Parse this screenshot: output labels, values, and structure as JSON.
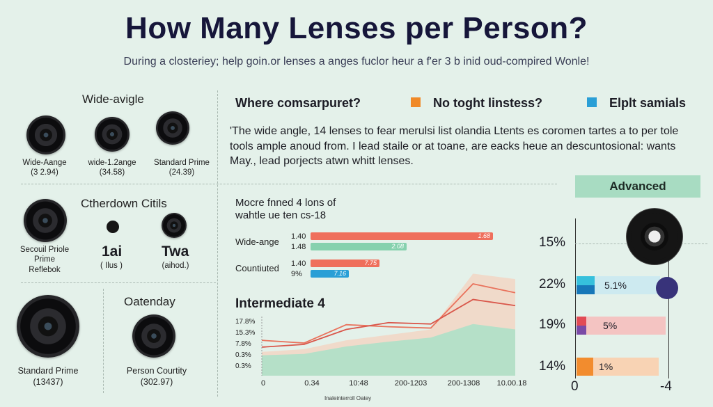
{
  "title": "How Many Lenses per Person?",
  "subtitle": "During a closteriey; help goin.or lenses a anges fuclor heur a f'er 3 b inid oud-compired Wonle!",
  "left": {
    "section1_title": "Wide-avigle",
    "lenses1": [
      {
        "label": "Wide-Aange",
        "sub": "(3 2.94)"
      },
      {
        "label": "wide-1.2ange",
        "sub": "(34.58)"
      },
      {
        "label": "Standard Prime",
        "sub": "(24.39)"
      }
    ],
    "section2_title": "Ctherdown Citils",
    "lenses2": [
      {
        "label": "Secouil Priole\nPrime\nReflebok",
        "sub": ""
      },
      {
        "label": "1ai",
        "sub": "( Ilus )"
      },
      {
        "label": "Twa",
        "sub": "(aihod.)"
      }
    ],
    "lens3": {
      "label": "Standard Prime",
      "sub": "(13437)"
    },
    "section3_title": "Oatenday",
    "lens4": {
      "label": "Person Courtity",
      "sub": "(302.97)"
    }
  },
  "middle": {
    "question": "Where comsarpuret?",
    "body": "'The wide angle, 14 lenses to fear merulsi list olandia Ltents es coromen tartes a to per tole tools ample anoud from. I lead staile or at toane, are eacks heue an descuntosional: wants May., lead porjects atwn whitt lenses.",
    "bar_title_line1": "Mocre fnned 4 lons of",
    "bar_title_line2": "wahtle ue ten cs-18",
    "intermediate_title": "Intermediate 4",
    "footer_label": "Inaleinterroll Oatey"
  },
  "legend": [
    {
      "label": "No toght linstess?",
      "color": "#f08a28"
    },
    {
      "label": "Elplt samials",
      "color": "#2a9fd6"
    }
  ],
  "bar_chart": {
    "rows": [
      {
        "label": "Wide-ange",
        "bars": [
          {
            "pct": "1.40",
            "val": "1.68",
            "color": "#ef6f5c",
            "frac": 0.95
          },
          {
            "pct": "1.48",
            "val": "2.08",
            "color": "#86d1ae",
            "frac": 0.5
          }
        ]
      },
      {
        "label": "Countiuted",
        "bars": [
          {
            "pct": "1.40",
            "val": "7.75",
            "color": "#ef6f5c",
            "frac": 0.36
          },
          {
            "pct": "9%",
            "val": "7.16",
            "color": "#2a9fd6",
            "frac": 0.2
          }
        ]
      }
    ]
  },
  "advanced": {
    "label": "Advanced",
    "rows": [
      {
        "pct": "15%",
        "val": ""
      },
      {
        "pct": "22%",
        "val": "5.1%"
      },
      {
        "pct": "19%",
        "val": "5%"
      },
      {
        "pct": "14%",
        "val": "1%"
      }
    ],
    "axis_left": "0",
    "axis_right": "-4"
  },
  "chart_data": {
    "type": "area",
    "title": "Intermediate 4",
    "y_ticks": [
      "17.8%",
      "15.3%",
      "7.8%",
      "0.3%",
      "0.3%"
    ],
    "x_ticks": [
      "0",
      "0.34",
      "10:48",
      "200-1203",
      "200-1308",
      "10.00.18"
    ],
    "series": [
      {
        "color": "#e9725c",
        "values": [
          5.2,
          4.8,
          7.5,
          7.2,
          7.0,
          13.5,
          12.2
        ]
      },
      {
        "color": "#d9564a",
        "values": [
          4.2,
          4.6,
          6.8,
          7.8,
          7.6,
          11.2,
          10.3
        ]
      }
    ],
    "area_values": [
      3.5,
      3.9,
      5.2,
      6.0,
      6.8,
      15.0,
      14.2
    ],
    "fill_values": [
      3.0,
      3.2,
      4.3,
      5.0,
      5.6,
      7.6,
      6.8
    ],
    "ylim": [
      0,
      18
    ]
  }
}
